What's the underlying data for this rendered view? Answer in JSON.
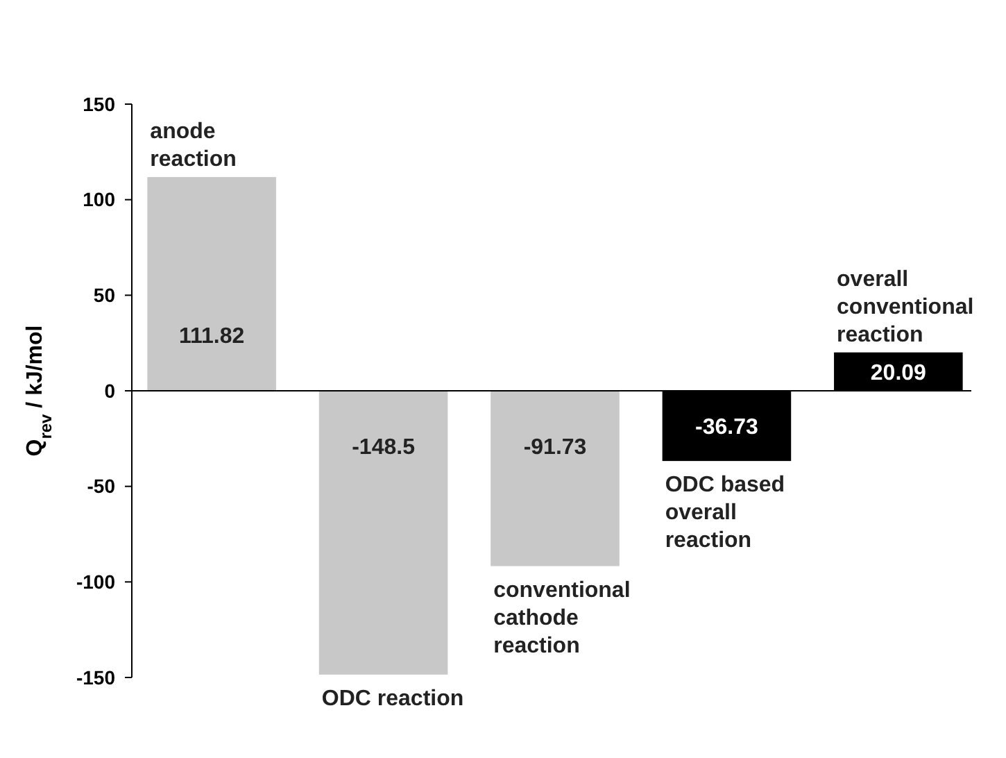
{
  "chart_data": {
    "type": "bar",
    "ylabel": "Q$_{rev}$ / kJ/mol",
    "categories": [
      "anode reaction",
      "ODC reaction",
      "conventional cathode reaction",
      "ODC based overall reaction",
      "overall conventional reaction"
    ],
    "values": [
      111.82,
      -148.5,
      -91.73,
      -36.73,
      20.09
    ],
    "colors": [
      "#c8c8c8",
      "#c8c8c8",
      "#c8c8c8",
      "#000000",
      "#000000"
    ],
    "ylim": [
      -150,
      150
    ],
    "yticks": [
      -150,
      -100,
      -50,
      0,
      50,
      100,
      150
    ],
    "data_labels": true
  }
}
